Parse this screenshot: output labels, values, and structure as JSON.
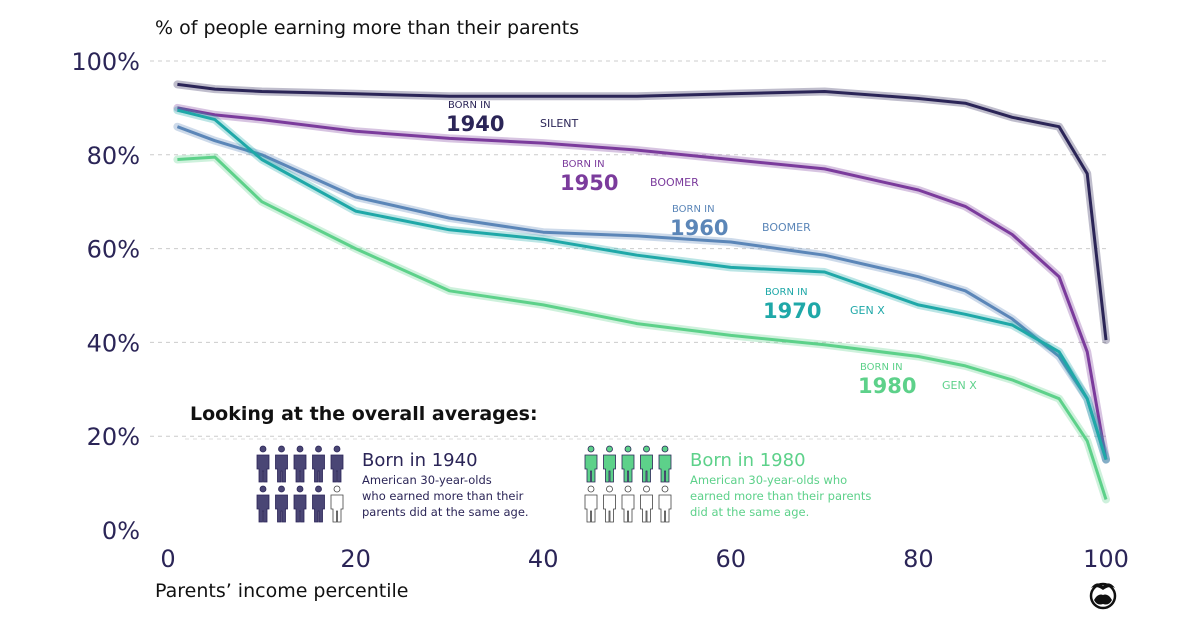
{
  "chart_data": {
    "type": "line",
    "title": "% of people earning more than their parents",
    "xlabel": "Parents’ income percentile",
    "ylabel": "% of people earning more than their parents",
    "xlim": [
      0,
      100
    ],
    "ylim": [
      0,
      100
    ],
    "x_ticks": [
      "0",
      "20",
      "40",
      "60",
      "80",
      "100"
    ],
    "y_ticks": [
      "0%",
      "20%",
      "40%",
      "60%",
      "80%",
      "100%"
    ],
    "grid": true,
    "x": [
      1,
      5,
      10,
      20,
      30,
      40,
      50,
      60,
      70,
      80,
      85,
      90,
      95,
      98,
      100
    ],
    "series": [
      {
        "name": "Born in 1940",
        "generation": "SILENT",
        "prefix": "BORN IN",
        "year": "1940",
        "color": "#2b2557",
        "values": [
          95,
          94,
          93.5,
          93,
          92.5,
          92.5,
          92.5,
          93,
          93.5,
          92,
          91,
          88,
          86,
          76,
          40.5
        ]
      },
      {
        "name": "Born in 1950",
        "generation": "BOOMER",
        "prefix": "BORN IN",
        "year": "1950",
        "color": "#7b3b9c",
        "values": [
          90,
          88.5,
          87.5,
          85,
          83.5,
          82.5,
          81,
          79,
          77,
          72.5,
          69,
          63,
          54,
          38,
          15
        ]
      },
      {
        "name": "Born in 1960",
        "generation": "BOOMER",
        "prefix": "BORN IN",
        "year": "1960",
        "color": "#5b86b8",
        "values": [
          86,
          83,
          80,
          71,
          66.5,
          63.5,
          62.7,
          61.4,
          58.6,
          54,
          51,
          45,
          37,
          28,
          15
        ]
      },
      {
        "name": "Born in 1970",
        "generation": "GEN X",
        "prefix": "BORN IN",
        "year": "1970",
        "color": "#1fa8a8",
        "values": [
          89.5,
          87.5,
          79,
          68,
          64,
          62,
          58.6,
          56,
          55,
          48,
          46,
          43.7,
          38,
          28,
          15
        ]
      },
      {
        "name": "Born in 1980",
        "generation": "GEN X",
        "prefix": "BORN IN",
        "year": "1980",
        "color": "#5dd18a",
        "values": [
          79,
          79.5,
          70,
          60,
          51,
          48,
          44,
          41.5,
          39.5,
          37,
          35,
          32,
          28,
          19,
          6.5
        ]
      }
    ]
  },
  "averages": {
    "heading": "Looking at the overall averages:",
    "items": [
      {
        "title": "Born in 1940",
        "text_lines": [
          "American 30-year-olds",
          "who earned more than their",
          "parents did at the same age."
        ],
        "filled_of_10": 9,
        "color": "#2b2557",
        "icon_fill": "#4a4675"
      },
      {
        "title": "Born in 1980",
        "text_lines": [
          "American 30-year-olds who",
          "earned more than their parents",
          "did at the same age."
        ],
        "filled_of_10": 5,
        "color": "#5dd18a",
        "icon_fill": "#5dd18a"
      }
    ]
  },
  "logo": "visual-capitalist-logo"
}
